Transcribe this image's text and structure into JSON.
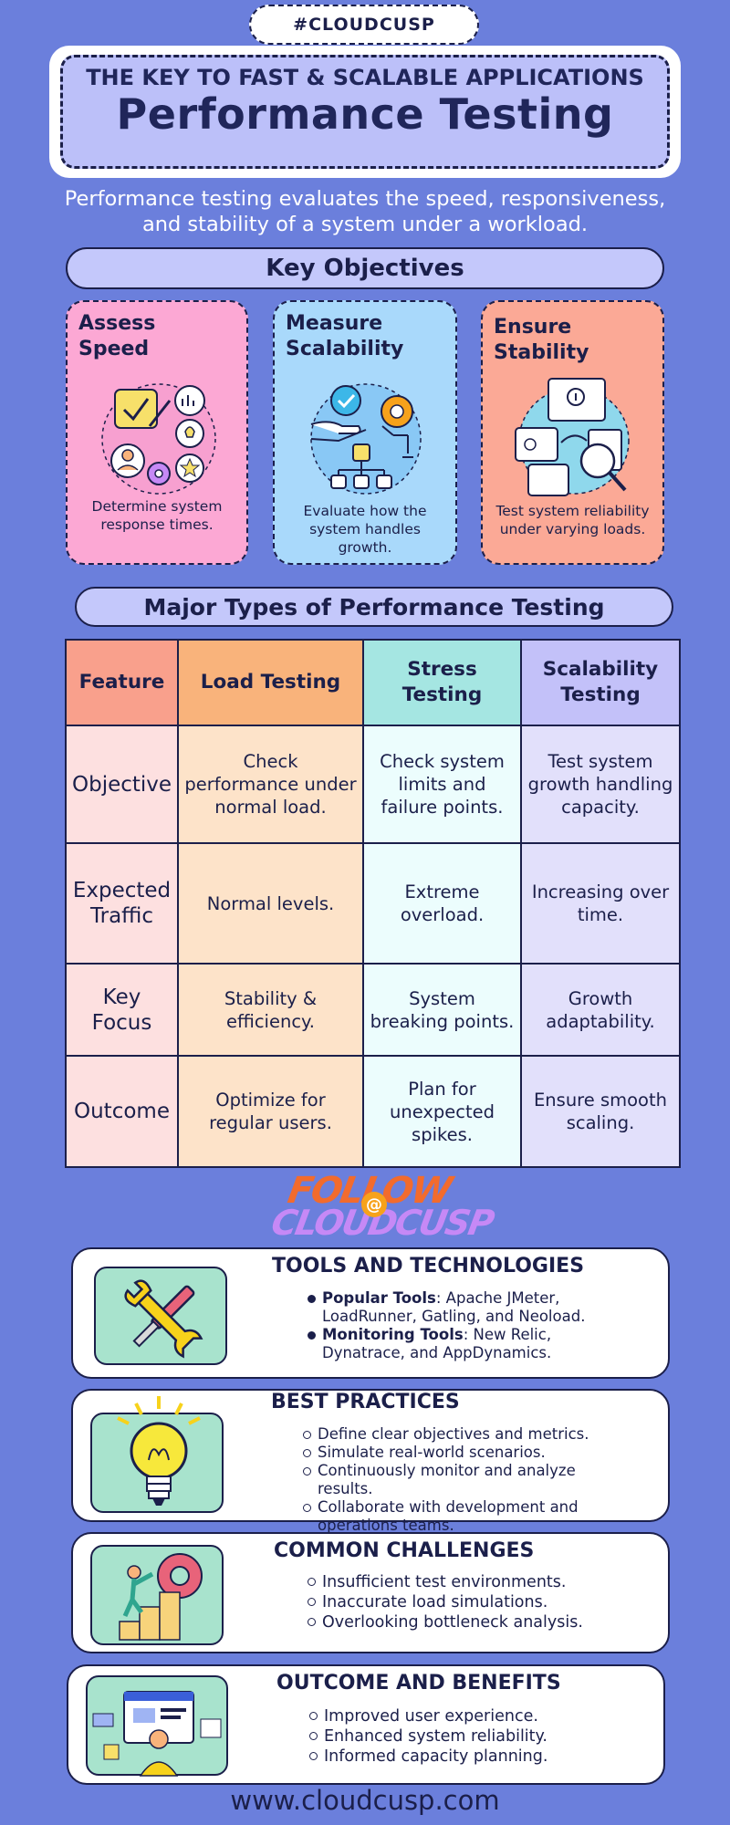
{
  "hashtag": "#CLOUDCUSP",
  "header": {
    "kicker": "THE KEY TO FAST & SCALABLE APPLICATIONS",
    "title": "Performance Testing"
  },
  "intro": "Performance testing evaluates the speed, responsiveness, and stability of a system under a workload.",
  "key_objectives": {
    "heading": "Key Objectives",
    "cards": [
      {
        "title_line1": "Assess",
        "title_line2": "Speed",
        "description": "Determine system response times.",
        "color": "#fca8d4",
        "icon": "checklist-gears-icon"
      },
      {
        "title_line1": "Measure",
        "title_line2": "Scalability",
        "description": "Evaluate how the system handles growth.",
        "color": "#a9d9fb",
        "icon": "hand-network-icon"
      },
      {
        "title_line1": "Ensure",
        "title_line2": "Stability",
        "description": "Test system reliability under varying loads.",
        "color": "#fba996",
        "icon": "documents-magnifier-icon"
      }
    ]
  },
  "types": {
    "heading": "Major Types of Performance Testing",
    "columns": [
      "Feature",
      "Load Testing",
      "Stress Testing",
      "Scalability Testing"
    ],
    "rows": [
      {
        "label": "Objective",
        "cells": [
          "Check performance under normal load.",
          "Check system limits and failure points.",
          "Test system growth handling capacity."
        ]
      },
      {
        "label": "Expected Traffic",
        "cells": [
          "Normal levels.",
          "Extreme overload.",
          "Increasing over time."
        ]
      },
      {
        "label": "Key Focus",
        "cells": [
          "Stability & efficiency.",
          "System breaking points.",
          "Growth adaptability."
        ]
      },
      {
        "label": "Outcome",
        "cells": [
          "Optimize for regular users.",
          "Plan for unexpected spikes.",
          "Ensure smooth scaling."
        ]
      }
    ]
  },
  "follow": {
    "line1": "FOLLOW",
    "at": "@",
    "line2": "CLOUDCUSP"
  },
  "tools": {
    "title": "TOOLS AND TECHNOLOGIES",
    "items": [
      {
        "label": "Popular Tools",
        "text": ": Apache JMeter, LoadRunner, Gatling, and Neoload."
      },
      {
        "label": "Monitoring Tools",
        "text": ": New Relic, Dynatrace, and AppDynamics."
      }
    ]
  },
  "best_practices": {
    "title": "BEST PRACTICES",
    "items": [
      "Define clear objectives and metrics.",
      "Simulate real-world scenarios.",
      "Continuously monitor and analyze results.",
      "Collaborate with development and operations teams."
    ]
  },
  "challenges": {
    "title": "COMMON CHALLENGES",
    "items": [
      "Insufficient test environments.",
      "Inaccurate load simulations.",
      "Overlooking bottleneck analysis."
    ]
  },
  "outcomes": {
    "title": "OUTCOME AND BENEFITS",
    "items": [
      "Improved user experience.",
      "Enhanced system reliability.",
      "Informed capacity planning."
    ]
  },
  "footer_url": "www.cloudcusp.com"
}
